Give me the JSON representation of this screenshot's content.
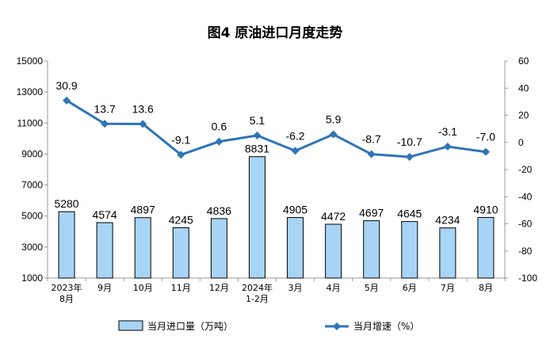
{
  "title": "图4  原油进口月度走势",
  "chart_data": {
    "type": "bar+line",
    "categories": [
      [
        "2023年",
        "8月"
      ],
      [
        "9月"
      ],
      [
        "10月"
      ],
      [
        "11月"
      ],
      [
        "12月"
      ],
      [
        "2024年",
        "1-2月"
      ],
      [
        "3月"
      ],
      [
        "4月"
      ],
      [
        "5月"
      ],
      [
        "6月"
      ],
      [
        "7月"
      ],
      [
        "8月"
      ]
    ],
    "series": [
      {
        "name": "当月进口量（万吨）",
        "type": "bar",
        "axis": "left",
        "values": [
          5280,
          4574,
          4897,
          4245,
          4836,
          8831,
          4905,
          4472,
          4697,
          4645,
          4234,
          4910
        ]
      },
      {
        "name": "当月增速（%）",
        "type": "line",
        "axis": "right",
        "values": [
          30.9,
          13.7,
          13.6,
          -9.1,
          0.6,
          5.1,
          -6.2,
          5.9,
          -8.7,
          -10.7,
          -3.1,
          -7.0
        ],
        "labels": [
          "30.9",
          "13.7",
          "13.6",
          "-9.1",
          "0.6",
          "5.1",
          "-6.2",
          "5.9",
          "-8.7",
          "-10.7",
          "-3.1",
          "-7.0"
        ]
      }
    ],
    "left_axis": {
      "min": 1000,
      "max": 15000,
      "ticks": [
        1000,
        3000,
        5000,
        7000,
        9000,
        11000,
        13000,
        15000
      ]
    },
    "right_axis": {
      "min": -100,
      "max": 60,
      "ticks": [
        -100,
        -80,
        -60,
        -40,
        -20,
        0,
        20,
        40,
        60
      ]
    },
    "legend_position": "bottom",
    "colors": {
      "bar_fill": "#a8d4f5",
      "bar_stroke": "#000000",
      "line": "#2e75b6",
      "axis": "#999999"
    }
  }
}
